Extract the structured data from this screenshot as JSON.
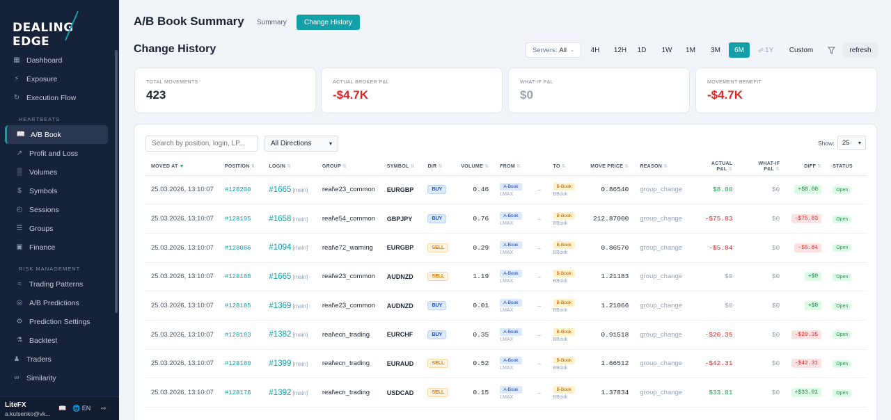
{
  "brand": {
    "left": "DEALING",
    "right": "EDGE"
  },
  "sidebar": {
    "items_top": [
      {
        "label": "Dashboard",
        "icon": "grid-icon"
      },
      {
        "label": "Exposure",
        "icon": "bolt-icon"
      },
      {
        "label": "Execution Flow",
        "icon": "refresh-icon"
      }
    ],
    "heartbeats_label": "HEARTBEATS",
    "items_hb": [
      {
        "label": "A/B Book",
        "icon": "book-icon",
        "active": true
      },
      {
        "label": "Profit and Loss",
        "icon": "trend-icon"
      },
      {
        "label": "Volumes",
        "icon": "bars-icon"
      },
      {
        "label": "Symbols",
        "icon": "dollar-icon"
      },
      {
        "label": "Sessions",
        "icon": "clock-icon"
      },
      {
        "label": "Groups",
        "icon": "layers-icon"
      },
      {
        "label": "Finance",
        "icon": "wallet-icon"
      }
    ],
    "risk_label": "RISK MANAGEMENT",
    "items_risk": [
      {
        "label": "Trading Patterns",
        "icon": "pattern-icon"
      },
      {
        "label": "A/B Predictions",
        "icon": "target-icon"
      },
      {
        "label": "Prediction Settings",
        "icon": "sliders-icon"
      },
      {
        "label": "Backtest",
        "icon": "flask-icon"
      }
    ],
    "items_bottom": [
      {
        "label": "Traders",
        "icon": "users-icon"
      },
      {
        "label": "Similarity",
        "icon": "link-icon"
      }
    ],
    "footer": {
      "org": "LiteFX",
      "email": "a.kutsenko@vk...",
      "lang": "EN"
    }
  },
  "header": {
    "title": "A/B Book Summary",
    "tabs": [
      "Summary",
      "Change History"
    ],
    "subtitle": "Change History",
    "servers_label": "Servers:",
    "servers_value": "All",
    "ranges": [
      "4H",
      "12H",
      "1D",
      "1W",
      "1M",
      "3M",
      "6M",
      "1Y",
      "Custom"
    ],
    "active_range": "6M",
    "refresh_label": "refresh"
  },
  "cards": [
    {
      "label": "TOTAL MOVEMENTS",
      "value": "423",
      "color": "#1b2433"
    },
    {
      "label": "ACTUAL BROKER P&L",
      "value": "-$4.7K",
      "color": "#dc2626"
    },
    {
      "label": "WHAT-IF P&L",
      "value": "$0",
      "color": "#9aa3b0"
    },
    {
      "label": "MOVEMENT BENEFIT",
      "value": "-$4.7K",
      "color": "#dc2626"
    }
  ],
  "table": {
    "search_placeholder": "Search by position, login, LP...",
    "direction_filter": "All Directions",
    "show_label": "Show:",
    "show_value": "25",
    "columns": [
      "MOVED AT",
      "POSITION",
      "LOGIN",
      "GROUP",
      "SYMBOL",
      "DIR",
      "VOLUME",
      "FROM",
      "TO",
      "MOVE PRICE",
      "REASON",
      "ACTUAL P&L",
      "WHAT-IF P&L",
      "DIFF",
      "STATUS"
    ],
    "rows": [
      {
        "time": "25.03.2026, 13:10:07",
        "position": "#128200",
        "login": "#1665",
        "tag": "[main]",
        "group": "real\\e23_common",
        "symbol": "EURGBP",
        "dir": "BUY",
        "volume": "0.46",
        "from": "A-Book",
        "from_lp": "LMAX",
        "to": "B-Book",
        "to_lp": "BBook",
        "price": "0.86540",
        "reason": "group_change",
        "actual": "$8.00",
        "actual_sign": "p",
        "whatif": "$0",
        "diff": "+$8.00",
        "diff_sign": "p",
        "status": "Open"
      },
      {
        "time": "25.03.2026, 13:10:07",
        "position": "#128195",
        "login": "#1658",
        "tag": "[main]",
        "group": "real\\e54_common",
        "symbol": "GBPJPY",
        "dir": "BUY",
        "volume": "0.76",
        "from": "A-Book",
        "from_lp": "LMAX",
        "to": "B-Book",
        "to_lp": "BBook",
        "price": "212.87000",
        "reason": "group_change",
        "actual": "-$75.83",
        "actual_sign": "n",
        "whatif": "$0",
        "diff": "-$75.83",
        "diff_sign": "n",
        "status": "Open"
      },
      {
        "time": "25.03.2026, 13:10:07",
        "position": "#128086",
        "login": "#1094",
        "tag": "[main]",
        "group": "real\\e72_warning",
        "symbol": "EURGBP",
        "dir": "SELL",
        "volume": "0.29",
        "from": "A-Book",
        "from_lp": "LMAX",
        "to": "B-Book",
        "to_lp": "BBook",
        "price": "0.86570",
        "reason": "group_change",
        "actual": "-$5.84",
        "actual_sign": "n",
        "whatif": "$0",
        "diff": "-$5.84",
        "diff_sign": "n",
        "status": "Open"
      },
      {
        "time": "25.03.2026, 13:10:07",
        "position": "#128188",
        "login": "#1665",
        "tag": "[main]",
        "group": "real\\e23_common",
        "symbol": "AUDNZD",
        "dir": "SELL",
        "volume": "1.19",
        "from": "A-Book",
        "from_lp": "LMAX",
        "to": "B-Book",
        "to_lp": "BBook",
        "price": "1.21183",
        "reason": "group_change",
        "actual": "$0",
        "actual_sign": "z",
        "whatif": "$0",
        "diff": "+$0",
        "diff_sign": "p",
        "status": "Open"
      },
      {
        "time": "25.03.2026, 13:10:07",
        "position": "#128185",
        "login": "#1369",
        "tag": "[main]",
        "group": "real\\e23_common",
        "symbol": "AUDNZD",
        "dir": "BUY",
        "volume": "0.01",
        "from": "A-Book",
        "from_lp": "LMAX",
        "to": "B-Book",
        "to_lp": "BBook",
        "price": "1.21066",
        "reason": "group_change",
        "actual": "$0",
        "actual_sign": "z",
        "whatif": "$0",
        "diff": "+$0",
        "diff_sign": "p",
        "status": "Open"
      },
      {
        "time": "25.03.2026, 13:10:07",
        "position": "#128183",
        "login": "#1382",
        "tag": "[main]",
        "group": "real\\ecn_trading",
        "symbol": "EURCHF",
        "dir": "BUY",
        "volume": "0.35",
        "from": "A-Book",
        "from_lp": "LMAX",
        "to": "B-Book",
        "to_lp": "BBook",
        "price": "0.91518",
        "reason": "group_change",
        "actual": "-$20.35",
        "actual_sign": "n",
        "whatif": "$0",
        "diff": "-$20.35",
        "diff_sign": "n",
        "status": "Open"
      },
      {
        "time": "25.03.2026, 13:10:07",
        "position": "#128180",
        "login": "#1399",
        "tag": "[main]",
        "group": "real\\ecn_trading",
        "symbol": "EURAUD",
        "dir": "SELL",
        "volume": "0.52",
        "from": "A-Book",
        "from_lp": "LMAX",
        "to": "B-Book",
        "to_lp": "BBook",
        "price": "1.66512",
        "reason": "group_change",
        "actual": "-$42.31",
        "actual_sign": "n",
        "whatif": "$0",
        "diff": "-$42.31",
        "diff_sign": "n",
        "status": "Open"
      },
      {
        "time": "25.03.2026, 13:10:07",
        "position": "#128176",
        "login": "#1392",
        "tag": "[main]",
        "group": "real\\ecn_trading",
        "symbol": "USDCAD",
        "dir": "SELL",
        "volume": "0.15",
        "from": "A-Book",
        "from_lp": "LMAX",
        "to": "B-Book",
        "to_lp": "BBook",
        "price": "1.37834",
        "reason": "group_change",
        "actual": "$33.01",
        "actual_sign": "p",
        "whatif": "$0",
        "diff": "+$33.01",
        "diff_sign": "p",
        "status": "Open"
      }
    ]
  }
}
